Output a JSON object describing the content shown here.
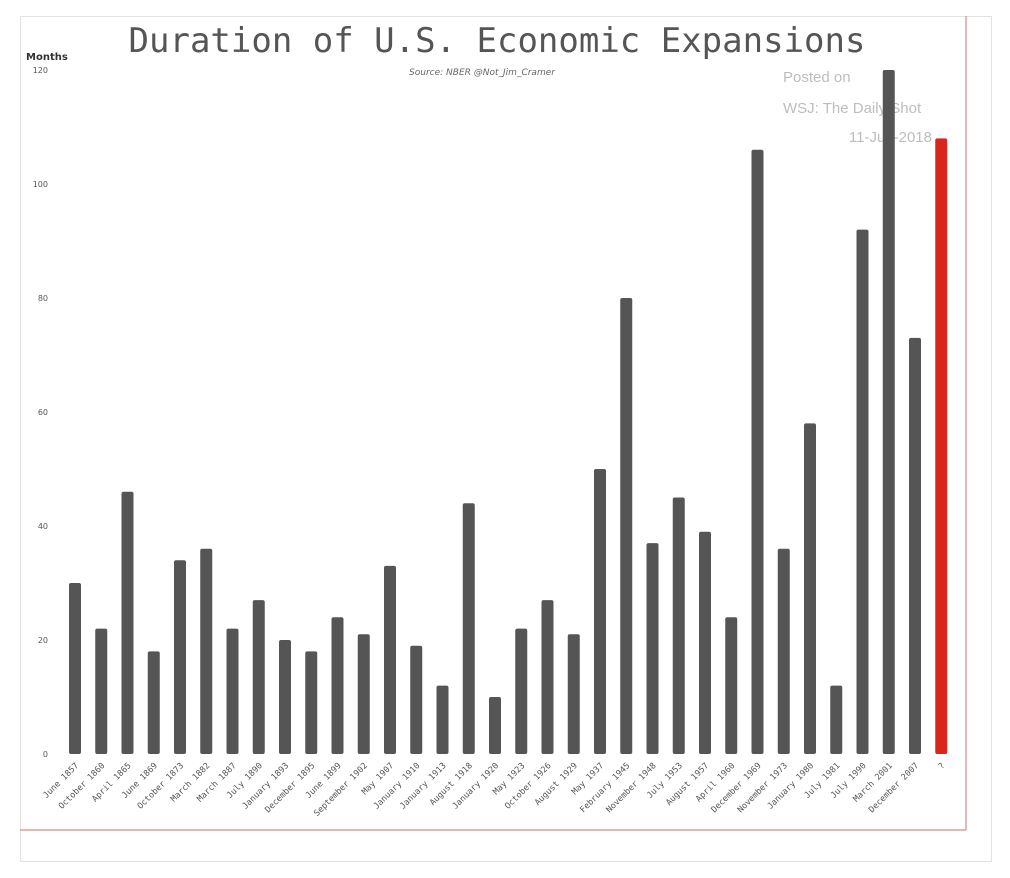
{
  "chart_data": {
    "type": "bar",
    "title": "Duration of U.S. Economic Expansions",
    "subtitle": "Source: NBER  @Not_Jim_Cramer",
    "ylabel": "Months",
    "xlabel": "",
    "ylim": [
      0,
      120
    ],
    "yticks": [
      0,
      20,
      40,
      60,
      80,
      100,
      120
    ],
    "categories": [
      "June 1857",
      "October 1860",
      "April 1865",
      "June 1869",
      "October 1873",
      "March 1882",
      "March 1887",
      "July 1890",
      "January 1893",
      "December 1895",
      "June 1899",
      "September 1902",
      "May 1907",
      "January 1910",
      "January 1913",
      "August 1918",
      "January 1920",
      "May 1923",
      "October 1926",
      "August 1929",
      "May 1937",
      "February 1945",
      "November 1948",
      "July 1953",
      "August 1957",
      "April 1960",
      "December 1969",
      "November 1973",
      "January 1980",
      "July 1981",
      "July 1990",
      "March 2001",
      "December 2007",
      "?"
    ],
    "values": [
      30,
      22,
      46,
      18,
      34,
      36,
      22,
      27,
      20,
      18,
      24,
      21,
      33,
      19,
      12,
      44,
      10,
      22,
      27,
      21,
      50,
      80,
      37,
      45,
      39,
      24,
      106,
      36,
      58,
      12,
      92,
      120,
      73,
      108
    ],
    "colors": {
      "bar": "#555555",
      "highlight": "#d9261c"
    },
    "highlight_index": 33,
    "annotations": [
      "Posted on",
      "WSJ: The Daily Shot",
      "11-Jun-2018"
    ]
  }
}
